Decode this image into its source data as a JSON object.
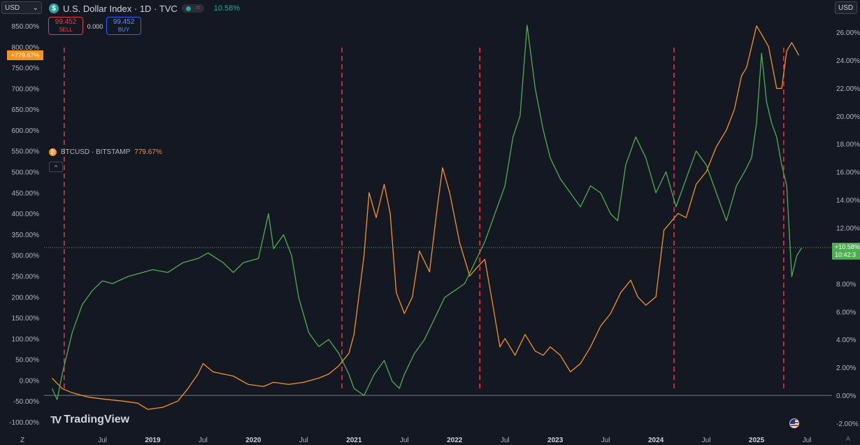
{
  "header": {
    "currency_left": "USD",
    "currency_right": "USD",
    "symbol_icon": "$",
    "title": "U.S. Dollar Index · 1D · TVC",
    "change_pct": "10.58%"
  },
  "trade": {
    "sell_price": "99.452",
    "sell_label": "SELL",
    "spread": "0.000",
    "buy_price": "99.452",
    "buy_label": "BUY"
  },
  "legend": {
    "icon": "₿",
    "name": "BTCUSD · BITSTAMP",
    "value": "779.67%"
  },
  "tags": {
    "btc_tag": "+779.67%",
    "dxy_tag": "+10.58%",
    "countdown": "10:42:3"
  },
  "logo": {
    "text": "TradingView"
  },
  "corners": {
    "left": "Z",
    "right": "A"
  },
  "colors": {
    "background": "#141823",
    "btc": "#f7931a",
    "dxy": "#4caf50",
    "halving_marker": "#f23645",
    "sell": "#f23645",
    "buy": "#2962ff"
  },
  "chart_data": {
    "type": "line",
    "left_axis": {
      "label": "",
      "range": [
        -100,
        850
      ],
      "ticks": [
        "850.00%",
        "800.00%",
        "750.00%",
        "700.00%",
        "650.00%",
        "600.00%",
        "550.00%",
        "500.00%",
        "450.00%",
        "400.00%",
        "350.00%",
        "300.00%",
        "250.00%",
        "200.00%",
        "150.00%",
        "100.00%",
        "50.00%",
        "0.00%",
        "-50.00%",
        "-100.00%"
      ]
    },
    "right_axis": {
      "label": "",
      "range": [
        -2,
        26
      ],
      "ticks": [
        "26.00%",
        "24.00%",
        "22.00%",
        "20.00%",
        "18.00%",
        "16.00%",
        "14.00%",
        "12.00%",
        "10.00%",
        "8.00%",
        "6.00%",
        "4.00%",
        "2.00%",
        "0.00%",
        "-2.00%"
      ]
    },
    "x_axis": {
      "range": [
        "2018-01",
        "2025-09"
      ],
      "ticks": [
        {
          "label": "Z",
          "date": 2017.95
        },
        {
          "label": "Jul",
          "date": 2018.5
        },
        {
          "label": "2019",
          "date": 2019.0
        },
        {
          "label": "Jul",
          "date": 2019.5
        },
        {
          "label": "2020",
          "date": 2020.0
        },
        {
          "label": "Jul",
          "date": 2020.5
        },
        {
          "label": "2021",
          "date": 2021.0
        },
        {
          "label": "Jul",
          "date": 2021.5
        },
        {
          "label": "2022",
          "date": 2022.0
        },
        {
          "label": "Jul",
          "date": 2022.5
        },
        {
          "label": "2023",
          "date": 2023.0
        },
        {
          "label": "Jul",
          "date": 2023.5
        },
        {
          "label": "2024",
          "date": 2024.0
        },
        {
          "label": "Jul",
          "date": 2024.5
        },
        {
          "label": "2025",
          "date": 2025.0
        },
        {
          "label": "Jul",
          "date": 2025.5
        }
      ]
    },
    "vertical_markers": [
      2018.12,
      2020.88,
      2022.25,
      2024.18,
      2025.27
    ],
    "series": [
      {
        "name": "BTCUSD · BITSTAMP",
        "axis": "left",
        "color": "#f7931a",
        "x": [
          2018.0,
          2018.1,
          2018.2,
          2018.35,
          2018.5,
          2018.7,
          2018.85,
          2018.95,
          2019.1,
          2019.25,
          2019.35,
          2019.45,
          2019.5,
          2019.6,
          2019.8,
          2019.95,
          2020.1,
          2020.2,
          2020.35,
          2020.5,
          2020.65,
          2020.75,
          2020.85,
          2020.95,
          2021.0,
          2021.1,
          2021.15,
          2021.22,
          2021.3,
          2021.36,
          2021.42,
          2021.5,
          2021.58,
          2021.65,
          2021.75,
          2021.83,
          2021.88,
          2021.95,
          2022.05,
          2022.15,
          2022.22,
          2022.3,
          2022.38,
          2022.45,
          2022.5,
          2022.6,
          2022.7,
          2022.8,
          2022.88,
          2022.95,
          2023.05,
          2023.15,
          2023.25,
          2023.35,
          2023.45,
          2023.55,
          2023.65,
          2023.75,
          2023.82,
          2023.9,
          2024.0,
          2024.08,
          2024.15,
          2024.22,
          2024.3,
          2024.4,
          2024.5,
          2024.6,
          2024.7,
          2024.78,
          2024.85,
          2024.9,
          2024.95,
          2025.0,
          2025.05,
          2025.12,
          2025.2,
          2025.25,
          2025.3,
          2025.35,
          2025.42
        ],
        "y": [
          5,
          -20,
          -30,
          -40,
          -45,
          -50,
          -55,
          -70,
          -65,
          -50,
          -20,
          15,
          40,
          20,
          10,
          -10,
          -15,
          -5,
          -10,
          -5,
          5,
          15,
          35,
          65,
          110,
          300,
          450,
          390,
          470,
          400,
          210,
          160,
          200,
          310,
          260,
          420,
          510,
          450,
          330,
          250,
          270,
          290,
          180,
          80,
          100,
          60,
          110,
          70,
          60,
          80,
          60,
          20,
          40,
          80,
          130,
          160,
          210,
          240,
          200,
          180,
          200,
          360,
          380,
          400,
          390,
          470,
          500,
          560,
          600,
          650,
          730,
          750,
          800,
          850,
          830,
          800,
          700,
          700,
          790,
          810,
          779.67
        ]
      },
      {
        "name": "U.S. Dollar Index · 1D · TVC",
        "axis": "right",
        "color": "#4caf50",
        "x": [
          2018.0,
          2018.05,
          2018.1,
          2018.2,
          2018.3,
          2018.4,
          2018.5,
          2018.6,
          2018.75,
          2018.9,
          2019.0,
          2019.15,
          2019.3,
          2019.45,
          2019.55,
          2019.7,
          2019.8,
          2019.9,
          2020.05,
          2020.15,
          2020.2,
          2020.3,
          2020.38,
          2020.45,
          2020.55,
          2020.65,
          2020.75,
          2020.85,
          2020.95,
          2021.0,
          2021.1,
          2021.2,
          2021.3,
          2021.38,
          2021.45,
          2021.5,
          2021.6,
          2021.7,
          2021.8,
          2021.9,
          2022.0,
          2022.1,
          2022.2,
          2022.3,
          2022.4,
          2022.5,
          2022.58,
          2022.65,
          2022.72,
          2022.8,
          2022.88,
          2022.95,
          2023.05,
          2023.15,
          2023.25,
          2023.35,
          2023.45,
          2023.55,
          2023.62,
          2023.7,
          2023.8,
          2023.9,
          2024.0,
          2024.1,
          2024.2,
          2024.3,
          2024.4,
          2024.5,
          2024.6,
          2024.7,
          2024.8,
          2024.88,
          2024.95,
          2025.0,
          2025.05,
          2025.1,
          2025.15,
          2025.2,
          2025.25,
          2025.3,
          2025.35,
          2025.4,
          2025.45
        ],
        "y": [
          0.5,
          -0.3,
          1.5,
          4.5,
          6.5,
          7.5,
          8.2,
          8.0,
          8.5,
          8.8,
          9.0,
          8.8,
          9.5,
          9.8,
          10.2,
          9.5,
          8.8,
          9.5,
          9.8,
          13.0,
          10.5,
          11.5,
          10.0,
          7.0,
          4.5,
          3.5,
          4.0,
          3.0,
          1.5,
          0.5,
          0.0,
          1.5,
          2.5,
          1.0,
          0.5,
          1.5,
          3.0,
          4.0,
          5.5,
          7.0,
          7.5,
          8.0,
          9.5,
          11.0,
          13.0,
          15.0,
          18.5,
          20.0,
          26.5,
          22.0,
          19.0,
          17.0,
          15.5,
          14.5,
          13.5,
          15.0,
          14.5,
          13.0,
          12.5,
          16.5,
          18.5,
          17.0,
          14.5,
          16.0,
          13.5,
          15.5,
          17.5,
          16.5,
          14.5,
          12.5,
          15.0,
          16.0,
          17.0,
          19.5,
          24.5,
          21.0,
          19.5,
          18.5,
          16.5,
          15.0,
          8.5,
          10.0,
          10.58
        ]
      }
    ]
  }
}
